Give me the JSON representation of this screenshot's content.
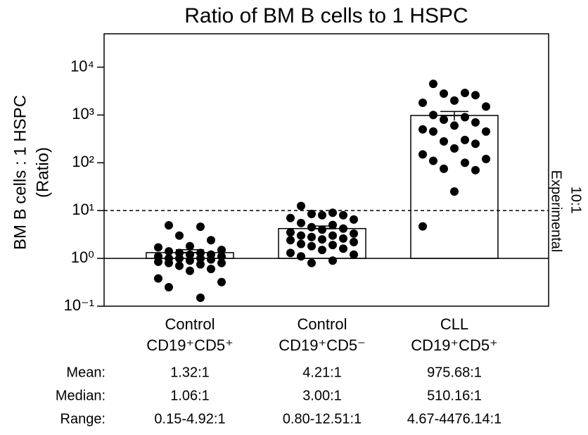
{
  "chart_data": {
    "type": "bar_scatter",
    "title": "Ratio of BM B cells to 1 HSPC",
    "ylabel": "BM B cells : 1 HSPC",
    "ylabel_sub": "(Ratio)",
    "categories": [
      "Control",
      "Control",
      "CLL"
    ],
    "subsets": [
      "CD19⁺CD5⁺",
      "CD19⁺CD5⁻",
      "CD19⁺CD5⁺"
    ],
    "values": [
      1.32,
      4.21,
      975.68
    ],
    "errors": [
      0.2,
      0.55,
      210
    ],
    "points": [
      [
        4.92,
        4.6,
        3.0,
        2.4,
        1.8,
        1.7,
        1.5,
        1.4,
        1.3,
        1.3,
        1.2,
        1.2,
        1.1,
        1.1,
        1.0,
        1.0,
        1.0,
        0.95,
        0.9,
        0.85,
        0.8,
        0.8,
        0.75,
        0.7,
        0.6,
        0.55,
        0.38,
        0.32,
        0.25,
        0.15
      ],
      [
        12.51,
        9,
        8.5,
        8,
        8,
        7,
        6.5,
        5.5,
        5,
        4.5,
        4.2,
        4,
        3.5,
        3.3,
        3,
        3,
        2.8,
        2.6,
        2.5,
        2.4,
        2.2,
        2,
        1.9,
        1.8,
        1.6,
        1.5,
        1.3,
        1.2,
        1.1,
        0.9,
        0.8
      ],
      [
        4476.14,
        2900,
        2800,
        2600,
        2000,
        1800,
        1500,
        1000,
        900,
        800,
        700,
        600,
        500,
        450,
        450,
        300,
        280,
        250,
        200,
        150,
        120,
        110,
        100,
        75,
        70,
        25,
        4.67
      ]
    ],
    "color": "#000000",
    "bar_fill": "#ffffff",
    "log_scale": true,
    "ylim": [
      0.1,
      50000
    ],
    "yticks": [
      {
        "value": 0.1,
        "label": "10⁻¹"
      },
      {
        "value": 1,
        "label": "10⁰"
      },
      {
        "value": 10,
        "label": "10¹"
      },
      {
        "value": 100,
        "label": "10²"
      },
      {
        "value": 1000,
        "label": "10³"
      },
      {
        "value": 10000,
        "label": "10⁴"
      }
    ],
    "reference_lines": [
      {
        "value": 10,
        "style": "dashed",
        "label": "10:1"
      },
      {
        "value": 1,
        "style": "solid"
      }
    ],
    "side_note": "Experimental",
    "stats": [
      {
        "label": "Mean:",
        "values": [
          "1.32:1",
          "4.21:1",
          "975.68:1"
        ]
      },
      {
        "label": "Median:",
        "values": [
          "1.06:1",
          "3.00:1",
          "510.16:1"
        ]
      },
      {
        "label": "Range:",
        "values": [
          "0.15-4.92:1",
          "0.80-12.51:1",
          "4.67-4476.14:1"
        ]
      }
    ]
  }
}
